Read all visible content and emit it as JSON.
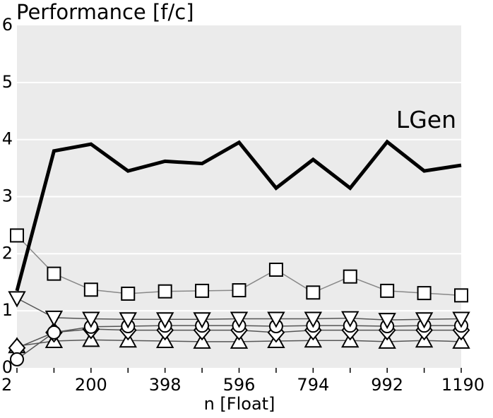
{
  "chart_data": {
    "type": "line",
    "title": "Performance [f/c]",
    "xlabel": "n [Float]",
    "ylabel": "",
    "xlim": [
      2,
      1190
    ],
    "ylim": [
      0,
      6
    ],
    "xticks": [
      2,
      200,
      398,
      596,
      794,
      992,
      1190
    ],
    "yticks": [
      0,
      1,
      2,
      3,
      4,
      5,
      6
    ],
    "grid": true,
    "background_color": "#ebebeb",
    "annotation": "LGen",
    "x": [
      2,
      101,
      200,
      299,
      398,
      497,
      596,
      695,
      794,
      893,
      992,
      1091,
      1190
    ],
    "series": [
      {
        "name": "LGen",
        "marker": "none",
        "color": "#000000",
        "values": [
          1.35,
          3.8,
          3.92,
          3.45,
          3.62,
          3.58,
          3.95,
          3.15,
          3.65,
          3.15,
          3.96,
          3.45,
          3.55
        ]
      },
      {
        "marker": "square",
        "color": "#888888",
        "values": [
          2.32,
          1.65,
          1.37,
          1.3,
          1.34,
          1.35,
          1.36,
          1.72,
          1.32,
          1.6,
          1.35,
          1.31,
          1.27
        ]
      },
      {
        "marker": "triangle-down",
        "color": "#555555",
        "values": [
          1.22,
          0.88,
          0.86,
          0.85,
          0.85,
          0.85,
          0.86,
          0.86,
          0.86,
          0.87,
          0.84,
          0.85,
          0.86
        ]
      },
      {
        "marker": "circle",
        "color": "#555555",
        "values": [
          0.15,
          0.62,
          0.72,
          0.73,
          0.74,
          0.74,
          0.74,
          0.73,
          0.74,
          0.74,
          0.73,
          0.74,
          0.74
        ]
      },
      {
        "marker": "diamond",
        "color": "#555555",
        "values": [
          0.35,
          0.62,
          0.68,
          0.66,
          0.66,
          0.66,
          0.66,
          0.62,
          0.66,
          0.66,
          0.66,
          0.66,
          0.66
        ]
      },
      {
        "marker": "triangle-up",
        "color": "#555555",
        "values": [
          0.38,
          0.47,
          0.49,
          0.48,
          0.47,
          0.46,
          0.46,
          0.47,
          0.48,
          0.48,
          0.46,
          0.48,
          0.46
        ]
      }
    ]
  }
}
